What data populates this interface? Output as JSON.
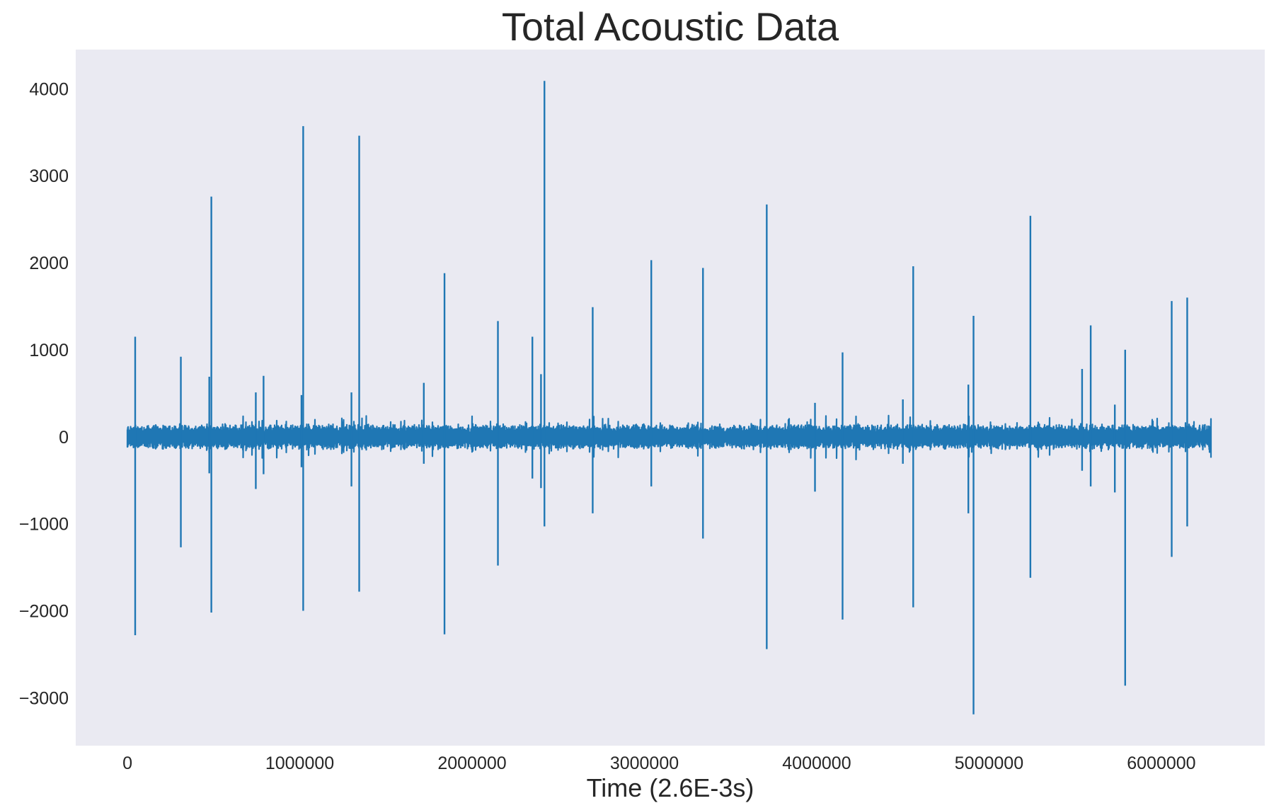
{
  "chart_data": {
    "type": "line",
    "title": "Total Acoustic Data",
    "xlabel": "Time (2.6E-3s)",
    "ylabel": "",
    "xlim": [
      -300000,
      6600000
    ],
    "ylim": [
      -3550,
      4450
    ],
    "x_ticks": [
      0,
      1000000,
      2000000,
      3000000,
      4000000,
      5000000,
      6000000
    ],
    "x_tick_labels": [
      "0",
      "1000000",
      "2000000",
      "3000000",
      "4000000",
      "5000000",
      "6000000"
    ],
    "y_ticks": [
      -3000,
      -2000,
      -1000,
      0,
      1000,
      2000,
      3000,
      4000
    ],
    "y_tick_labels": [
      "−3000",
      "−2000",
      "−1000",
      "0",
      "1000",
      "2000",
      "3000",
      "4000"
    ],
    "grid": false,
    "legend": "none",
    "colors": {
      "line": "#1f77b4",
      "plot_background": "#eaeaf2",
      "text": "#262626"
    },
    "series": [
      {
        "x_range": [
          0,
          6290000
        ],
        "baseline_band": [
          -150,
          150
        ],
        "spikes": [
          {
            "x": 45000,
            "max": 1150,
            "min": -2280
          },
          {
            "x": 310000,
            "max": 920,
            "min": -1270
          },
          {
            "x": 475000,
            "max": 690,
            "min": -420
          },
          {
            "x": 487000,
            "max": 2760,
            "min": -2020
          },
          {
            "x": 745000,
            "max": 510,
            "min": -600
          },
          {
            "x": 790000,
            "max": 700,
            "min": -430
          },
          {
            "x": 1010000,
            "max": 480,
            "min": -350
          },
          {
            "x": 1020000,
            "max": 3570,
            "min": -2000
          },
          {
            "x": 1300000,
            "max": 510,
            "min": -570
          },
          {
            "x": 1345000,
            "max": 3460,
            "min": -1780
          },
          {
            "x": 1720000,
            "max": 620,
            "min": -310
          },
          {
            "x": 1840000,
            "max": 1880,
            "min": -2270
          },
          {
            "x": 2150000,
            "max": 1330,
            "min": -1480
          },
          {
            "x": 2350000,
            "max": 1150,
            "min": -480
          },
          {
            "x": 2400000,
            "max": 720,
            "min": -590
          },
          {
            "x": 2420000,
            "max": 4090,
            "min": -1030
          },
          {
            "x": 2700000,
            "max": 1490,
            "min": -880
          },
          {
            "x": 3040000,
            "max": 2030,
            "min": -570
          },
          {
            "x": 3340000,
            "max": 1940,
            "min": -1170
          },
          {
            "x": 3710000,
            "max": 2670,
            "min": -2440
          },
          {
            "x": 3990000,
            "max": 390,
            "min": -630
          },
          {
            "x": 4150000,
            "max": 970,
            "min": -2100
          },
          {
            "x": 4500000,
            "max": 430,
            "min": -310
          },
          {
            "x": 4560000,
            "max": 1960,
            "min": -1960
          },
          {
            "x": 4880000,
            "max": 600,
            "min": -880
          },
          {
            "x": 4910000,
            "max": 1390,
            "min": -3190
          },
          {
            "x": 5240000,
            "max": 2540,
            "min": -1620
          },
          {
            "x": 5540000,
            "max": 780,
            "min": -390
          },
          {
            "x": 5590000,
            "max": 1280,
            "min": -570
          },
          {
            "x": 5730000,
            "max": 370,
            "min": -640
          },
          {
            "x": 5790000,
            "max": 1000,
            "min": -2860
          },
          {
            "x": 6060000,
            "max": 1560,
            "min": -1380
          },
          {
            "x": 6150000,
            "max": 1600,
            "min": -1030
          }
        ]
      }
    ]
  }
}
